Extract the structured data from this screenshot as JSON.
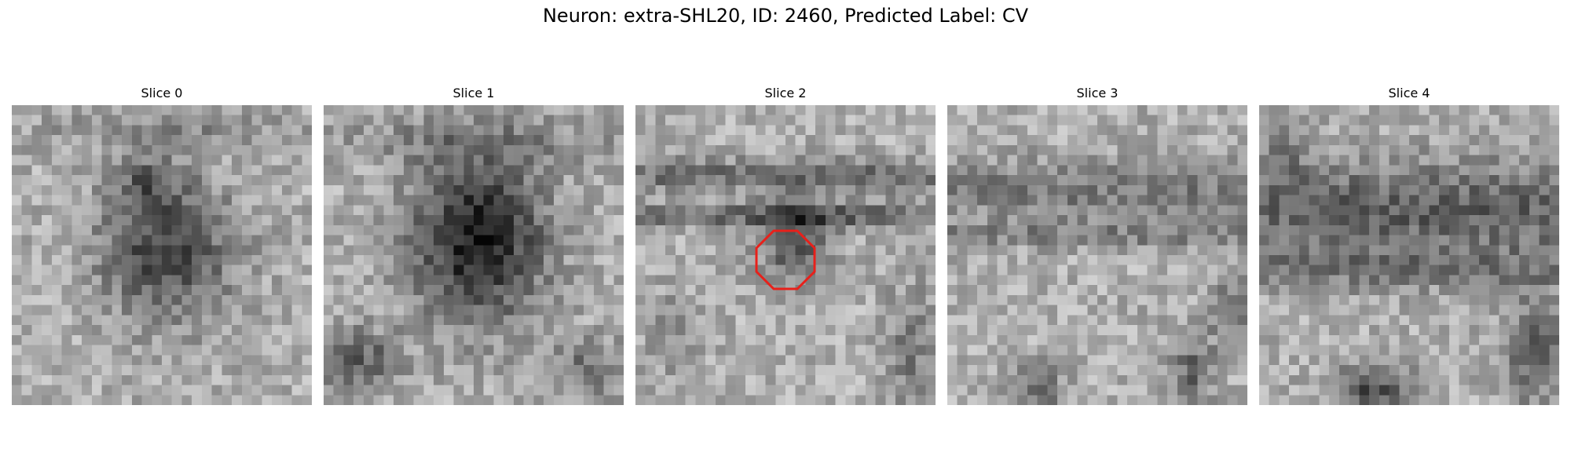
{
  "figure": {
    "title": "Neuron: extra-SHL20, ID: 2460, Predicted Label: CV"
  },
  "panels": [
    {
      "title": "Slice 0",
      "pattern": "blob",
      "seed": 11,
      "has_roi": false
    },
    {
      "title": "Slice 1",
      "pattern": "dark-blob",
      "seed": 23,
      "has_roi": false
    },
    {
      "title": "Slice 2",
      "pattern": "bands",
      "seed": 37,
      "has_roi": true
    },
    {
      "title": "Slice 3",
      "pattern": "texture",
      "seed": 41,
      "has_roi": false
    },
    {
      "title": "Slice 4",
      "pattern": "dark-top",
      "seed": 53,
      "has_roi": false
    }
  ],
  "roi": {
    "color": "#e8201a",
    "shape": "octagon",
    "slice": 2
  }
}
